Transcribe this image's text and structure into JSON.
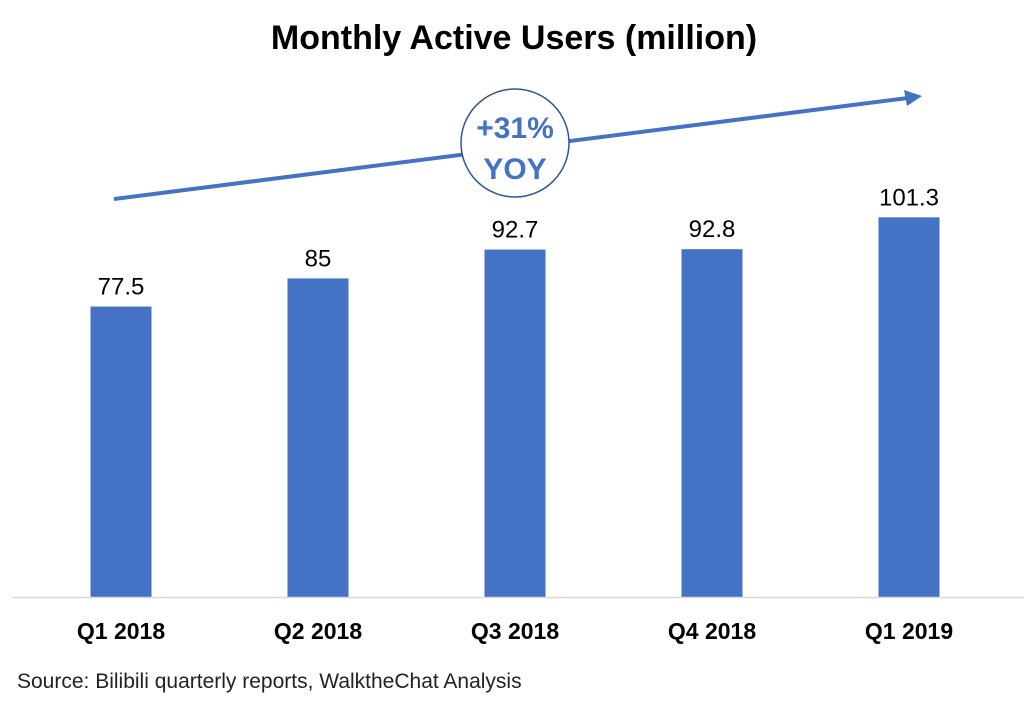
{
  "chart_data": {
    "type": "bar",
    "title": "Monthly Active Users (million)",
    "categories": [
      "Q1 2018",
      "Q2 2018",
      "Q3 2018",
      "Q4 2018",
      "Q1 2019"
    ],
    "values": [
      77.5,
      85,
      92.7,
      92.8,
      101.3
    ],
    "data_labels": [
      "77.5",
      "85",
      "92.7",
      "92.8",
      "101.3"
    ],
    "xlabel": "",
    "ylabel": "",
    "ylim": [
      0,
      101.3
    ],
    "grid": false,
    "legend": "none",
    "annotation": {
      "line1": "+31%",
      "line2": "YOY",
      "style": "circled badge on upward trend arrow"
    },
    "source": "Source: Bilibili quarterly reports, WalktheChat Analysis",
    "colors": {
      "bar": "#4472C4",
      "arrow": "#4472C4",
      "axis": "#D9D9D9"
    }
  }
}
